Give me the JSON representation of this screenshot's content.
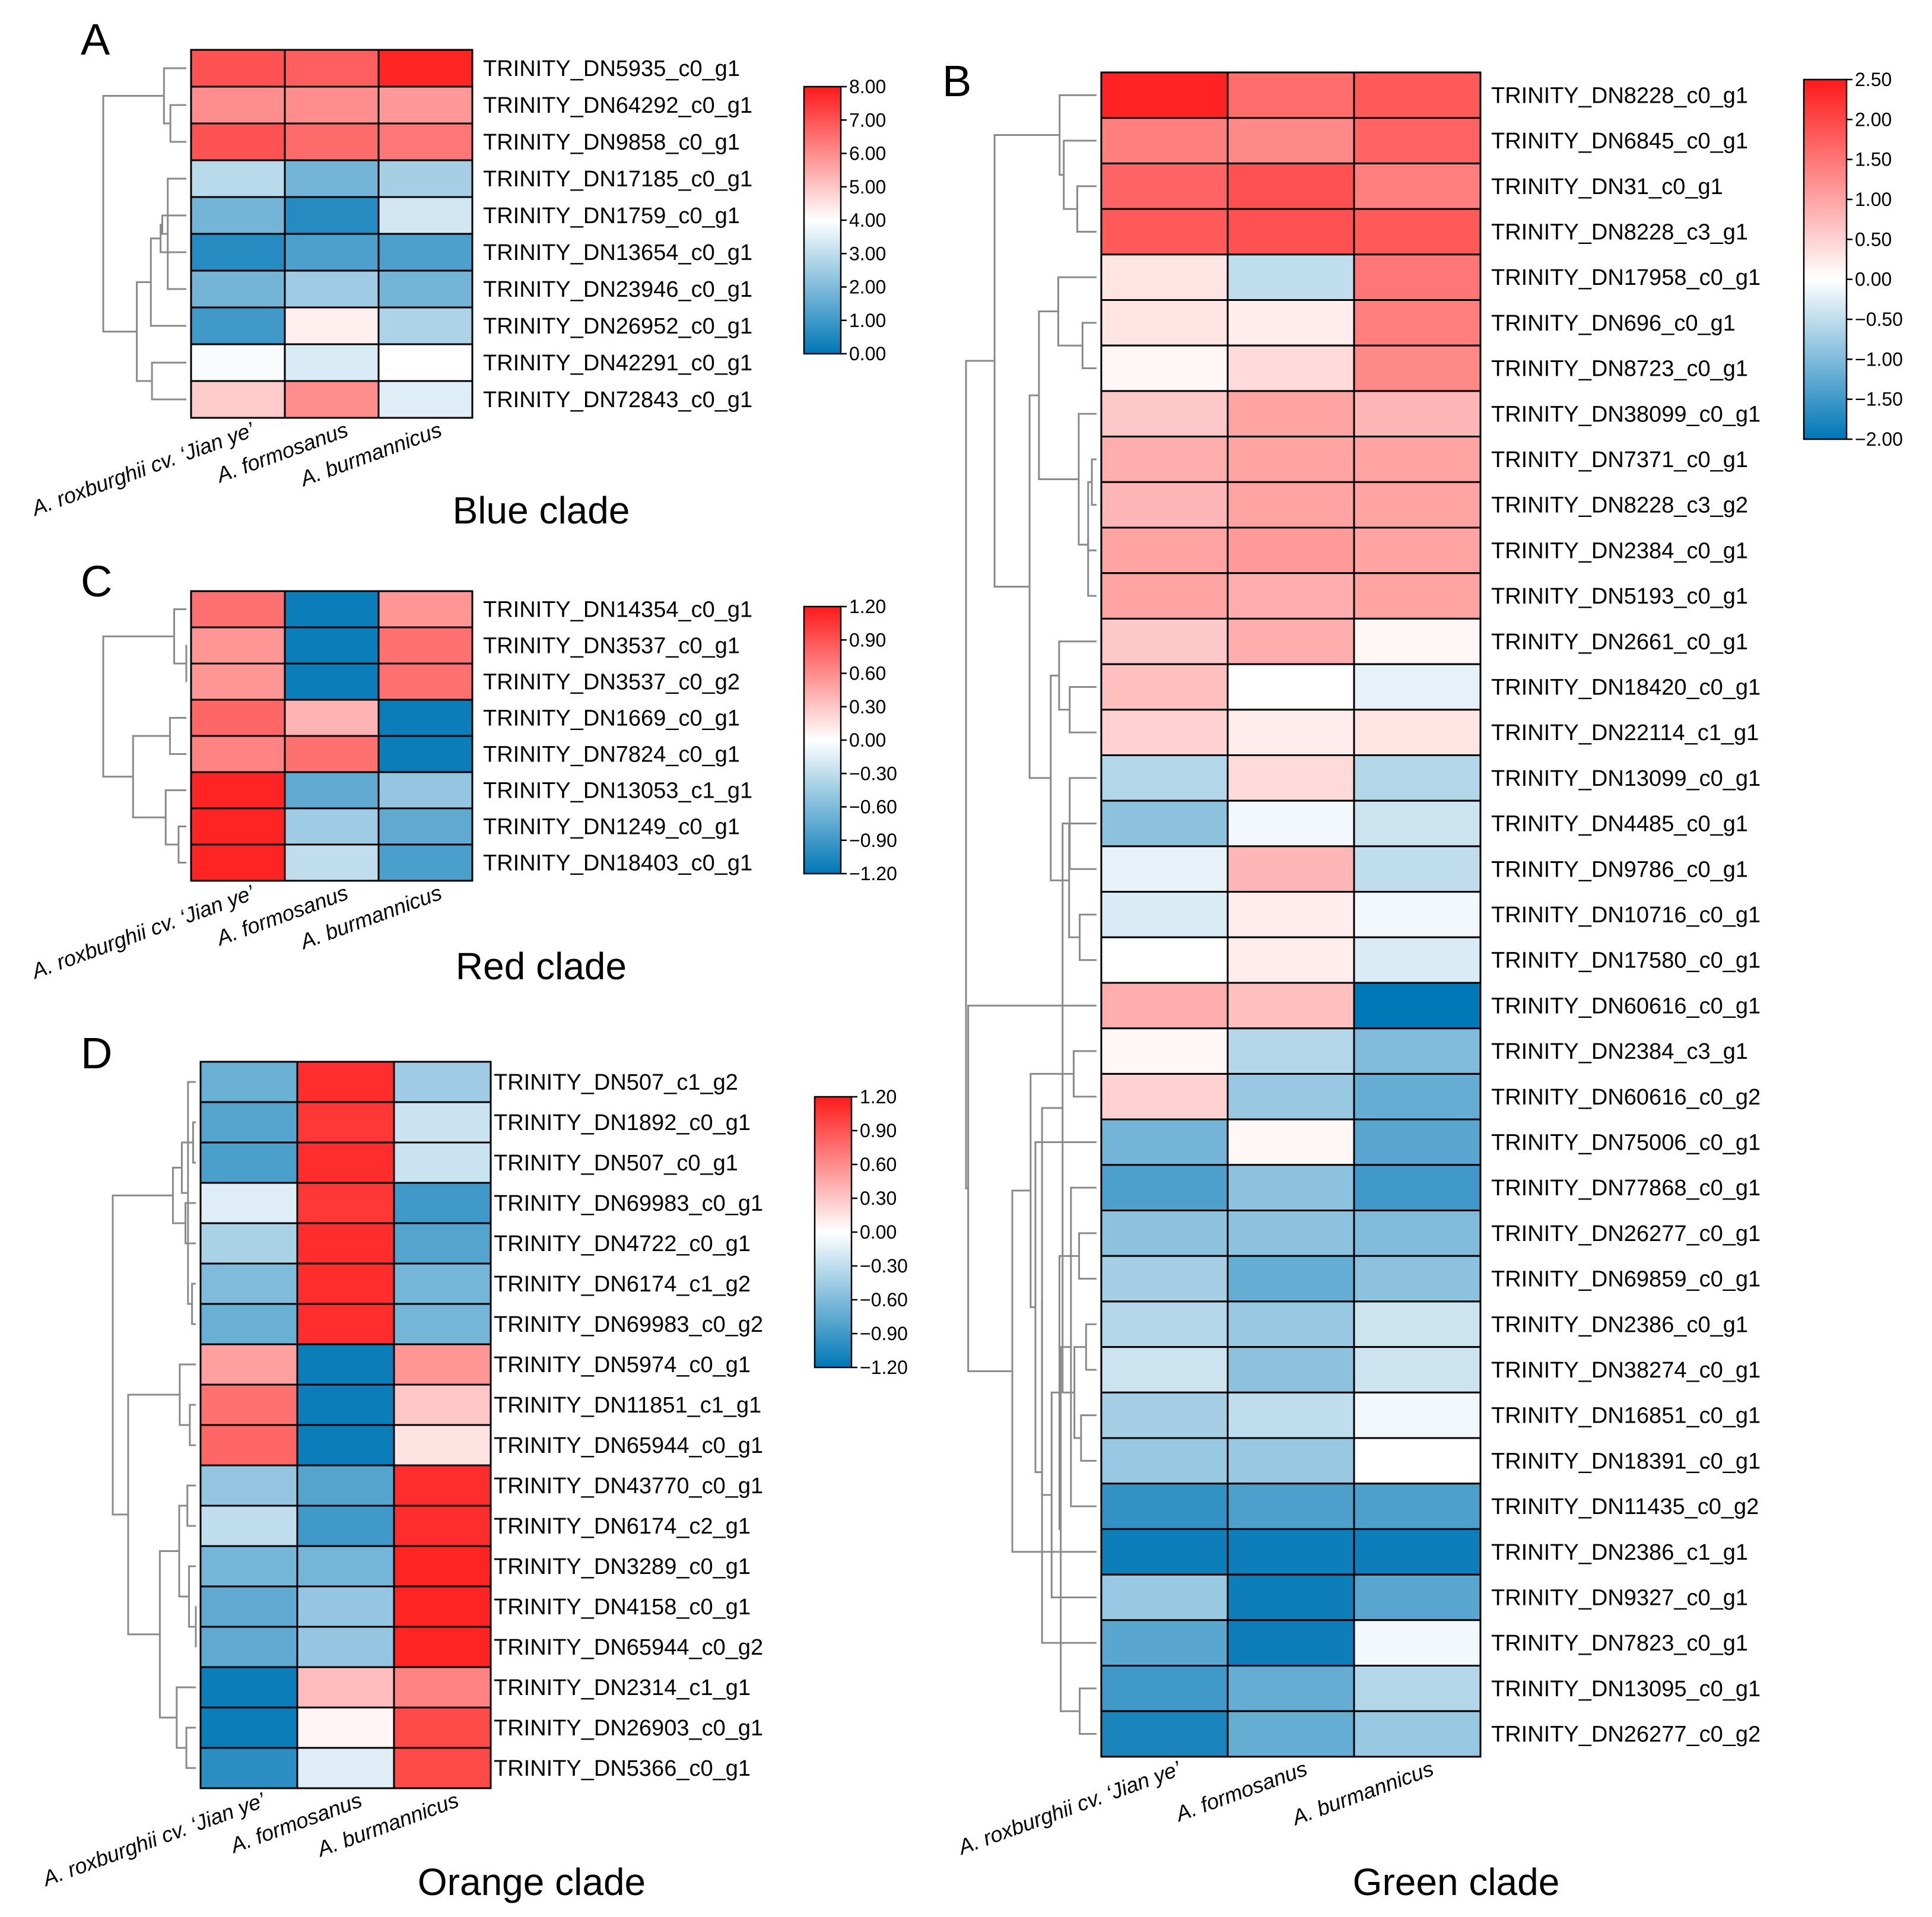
{
  "figure": {
    "columns": [
      "A. roxburghii cv. ‘Jian ye’",
      "A. formosanus",
      "A. burmannicus"
    ],
    "colors": {
      "low": "#0077b6",
      "mid": "#ffffff",
      "high": "#ff1a1a",
      "tree": "#8a8a8a",
      "border": "#000000"
    }
  },
  "chart_data": [
    {
      "type": "heatmap",
      "panel": "A",
      "title": "Blue clade",
      "legend_position": "right",
      "vmin": 0.0,
      "vmid": 4.0,
      "vmax": 8.0,
      "ticks": [
        "8.00",
        "7.00",
        "6.00",
        "5.00",
        "4.00",
        "3.00",
        "2.00",
        "1.00",
        "0.00"
      ],
      "rows": [
        "TRINITY_DN5935_c0_g1",
        "TRINITY_DN64292_c0_g1",
        "TRINITY_DN9858_c0_g1",
        "TRINITY_DN17185_c0_g1",
        "TRINITY_DN1759_c0_g1",
        "TRINITY_DN13654_c0_g1",
        "TRINITY_DN23946_c0_g1",
        "TRINITY_DN26952_c0_g1",
        "TRINITY_DN42291_c0_g1",
        "TRINITY_DN72843_c0_g1"
      ],
      "values": [
        [
          7.0,
          6.8,
          7.8
        ],
        [
          6.0,
          6.0,
          5.8
        ],
        [
          7.0,
          6.6,
          6.4
        ],
        [
          2.9,
          1.8,
          2.6
        ],
        [
          1.8,
          0.6,
          3.3
        ],
        [
          0.6,
          1.2,
          1.2
        ],
        [
          1.8,
          2.5,
          1.8
        ],
        [
          1.0,
          4.3,
          2.7
        ],
        [
          3.9,
          3.4,
          4.0
        ],
        [
          4.9,
          6.0,
          3.5
        ]
      ],
      "xlabel": "",
      "ylabel": ""
    },
    {
      "type": "heatmap",
      "panel": "B",
      "title": "Green clade",
      "legend_position": "right",
      "vmin": -2.0,
      "vmid": 0.0,
      "vmax": 2.5,
      "ticks": [
        "2.50",
        "2.00",
        "1.50",
        "1.00",
        "0.50",
        "0.00",
        "−0.50",
        "−1.00",
        "−1.50",
        "−2.00"
      ],
      "rows": [
        "TRINITY_DN8228_c0_g1",
        "TRINITY_DN6845_c0_g1",
        "TRINITY_DN31_c0_g1",
        "TRINITY_DN8228_c3_g1",
        "TRINITY_DN17958_c0_g1",
        "TRINITY_DN696_c0_g1",
        "TRINITY_DN8723_c0_g1",
        "TRINITY_DN38099_c0_g1",
        "TRINITY_DN7371_c0_g1",
        "TRINITY_DN8228_c3_g2",
        "TRINITY_DN2384_c0_g1",
        "TRINITY_DN5193_c0_g1",
        "TRINITY_DN2661_c0_g1",
        "TRINITY_DN18420_c0_g1",
        "TRINITY_DN22114_c1_g1",
        "TRINITY_DN13099_c0_g1",
        "TRINITY_DN4485_c0_g1",
        "TRINITY_DN9786_c0_g1",
        "TRINITY_DN10716_c0_g1",
        "TRINITY_DN17580_c0_g1",
        "TRINITY_DN60616_c0_g1",
        "TRINITY_DN2384_c3_g1",
        "TRINITY_DN60616_c0_g2",
        "TRINITY_DN75006_c0_g1",
        "TRINITY_DN77868_c0_g1",
        "TRINITY_DN26277_c0_g1",
        "TRINITY_DN69859_c0_g1",
        "TRINITY_DN2386_c0_g1",
        "TRINITY_DN38274_c0_g1",
        "TRINITY_DN16851_c0_g1",
        "TRINITY_DN18391_c0_g1",
        "TRINITY_DN11435_c0_g2",
        "TRINITY_DN2386_c1_g1",
        "TRINITY_DN9327_c0_g1",
        "TRINITY_DN7823_c0_g1",
        "TRINITY_DN13095_c0_g1",
        "TRINITY_DN26277_c0_g2"
      ],
      "values": [
        [
          2.4,
          1.6,
          1.8
        ],
        [
          1.4,
          1.3,
          1.7
        ],
        [
          1.7,
          1.9,
          1.4
        ],
        [
          1.8,
          1.9,
          1.8
        ],
        [
          0.3,
          -0.5,
          1.5
        ],
        [
          0.3,
          0.2,
          1.4
        ],
        [
          0.1,
          0.4,
          1.3
        ],
        [
          0.6,
          1.0,
          0.8
        ],
        [
          0.9,
          1.0,
          1.0
        ],
        [
          0.8,
          1.0,
          1.0
        ],
        [
          1.0,
          1.1,
          1.0
        ],
        [
          1.0,
          0.9,
          1.0
        ],
        [
          0.6,
          0.9,
          0.1
        ],
        [
          0.7,
          0.0,
          -0.2
        ],
        [
          0.5,
          0.2,
          0.3
        ],
        [
          -0.6,
          0.4,
          -0.6
        ],
        [
          -0.9,
          -0.1,
          -0.4
        ],
        [
          -0.2,
          0.8,
          -0.5
        ],
        [
          -0.3,
          0.2,
          -0.1
        ],
        [
          0.0,
          0.2,
          -0.3
        ],
        [
          0.9,
          0.7,
          -2.0
        ],
        [
          0.1,
          -0.6,
          -1.0
        ],
        [
          0.5,
          -0.8,
          -1.2
        ],
        [
          -1.1,
          0.1,
          -1.3
        ],
        [
          -1.4,
          -0.9,
          -1.5
        ],
        [
          -0.9,
          -0.9,
          -1.0
        ],
        [
          -0.7,
          -1.2,
          -0.9
        ],
        [
          -0.6,
          -0.8,
          -0.4
        ],
        [
          -0.4,
          -0.9,
          -0.4
        ],
        [
          -0.7,
          -0.5,
          -0.1
        ],
        [
          -0.8,
          -0.8,
          0.0
        ],
        [
          -1.6,
          -1.4,
          -1.4
        ],
        [
          -1.9,
          -1.9,
          -1.9
        ],
        [
          -0.8,
          -1.9,
          -1.3
        ],
        [
          -1.3,
          -1.9,
          -0.1
        ],
        [
          -1.5,
          -1.2,
          -0.6
        ],
        [
          -1.8,
          -1.2,
          -0.8
        ]
      ],
      "xlabel": "",
      "ylabel": ""
    },
    {
      "type": "heatmap",
      "panel": "C",
      "title": "Red clade",
      "legend_position": "right",
      "vmin": -1.2,
      "vmid": 0.0,
      "vmax": 1.2,
      "ticks": [
        "1.20",
        "0.90",
        "0.60",
        "0.30",
        "0.00",
        "−0.30",
        "−0.60",
        "−0.90",
        "−1.20"
      ],
      "rows": [
        "TRINITY_DN14354_c0_g1",
        "TRINITY_DN3537_c0_g1",
        "TRINITY_DN3537_c0_g2",
        "TRINITY_DN1669_c0_g1",
        "TRINITY_DN7824_c0_g1",
        "TRINITY_DN13053_c1_g1",
        "TRINITY_DN1249_c0_g1",
        "TRINITY_DN18403_c0_g1"
      ],
      "values": [
        [
          0.75,
          -1.15,
          0.55
        ],
        [
          0.55,
          -1.15,
          0.75
        ],
        [
          0.55,
          -1.15,
          0.75
        ],
        [
          0.8,
          0.4,
          -1.15
        ],
        [
          0.65,
          0.75,
          -1.15
        ],
        [
          1.15,
          -0.75,
          -0.5
        ],
        [
          1.15,
          -0.45,
          -0.75
        ],
        [
          1.15,
          -0.3,
          -0.85
        ]
      ],
      "xlabel": "",
      "ylabel": ""
    },
    {
      "type": "heatmap",
      "panel": "D",
      "title": "Orange clade",
      "legend_position": "right",
      "vmin": -1.2,
      "vmid": 0.0,
      "vmax": 1.2,
      "ticks": [
        "1.20",
        "0.90",
        "0.60",
        "0.30",
        "0.00",
        "−0.30",
        "−0.60",
        "−0.90",
        "−1.20"
      ],
      "rows": [
        "TRINITY_DN507_c1_g2",
        "TRINITY_DN1892_c0_g1",
        "TRINITY_DN507_c0_g1",
        "TRINITY_DN69983_c0_g1",
        "TRINITY_DN4722_c0_g1",
        "TRINITY_DN6174_c1_g2",
        "TRINITY_DN69983_c0_g2",
        "TRINITY_DN5974_c0_g1",
        "TRINITY_DN11851_c1_g1",
        "TRINITY_DN65944_c0_g1",
        "TRINITY_DN43770_c0_g1",
        "TRINITY_DN6174_c2_g1",
        "TRINITY_DN3289_c0_g1",
        "TRINITY_DN4158_c0_g1",
        "TRINITY_DN65944_c0_g2",
        "TRINITY_DN2314_c1_g1",
        "TRINITY_DN26903_c0_g1",
        "TRINITY_DN5366_c0_g1"
      ],
      "values": [
        [
          -0.7,
          1.1,
          -0.45
        ],
        [
          -0.8,
          1.05,
          -0.25
        ],
        [
          -0.85,
          1.1,
          -0.25
        ],
        [
          -0.15,
          1.05,
          -0.9
        ],
        [
          -0.4,
          1.1,
          -0.8
        ],
        [
          -0.6,
          1.1,
          -0.65
        ],
        [
          -0.7,
          1.1,
          -0.65
        ],
        [
          0.5,
          -1.15,
          0.55
        ],
        [
          0.75,
          -1.15,
          0.3
        ],
        [
          0.8,
          -1.15,
          0.15
        ],
        [
          -0.5,
          -0.8,
          1.1
        ],
        [
          -0.3,
          -0.9,
          1.1
        ],
        [
          -0.65,
          -0.65,
          1.15
        ],
        [
          -0.75,
          -0.5,
          1.15
        ],
        [
          -0.75,
          -0.5,
          1.15
        ],
        [
          -1.15,
          0.35,
          0.65
        ],
        [
          -1.15,
          0.05,
          0.95
        ],
        [
          -1.0,
          -0.15,
          0.95
        ]
      ],
      "xlabel": "",
      "ylabel": ""
    }
  ]
}
